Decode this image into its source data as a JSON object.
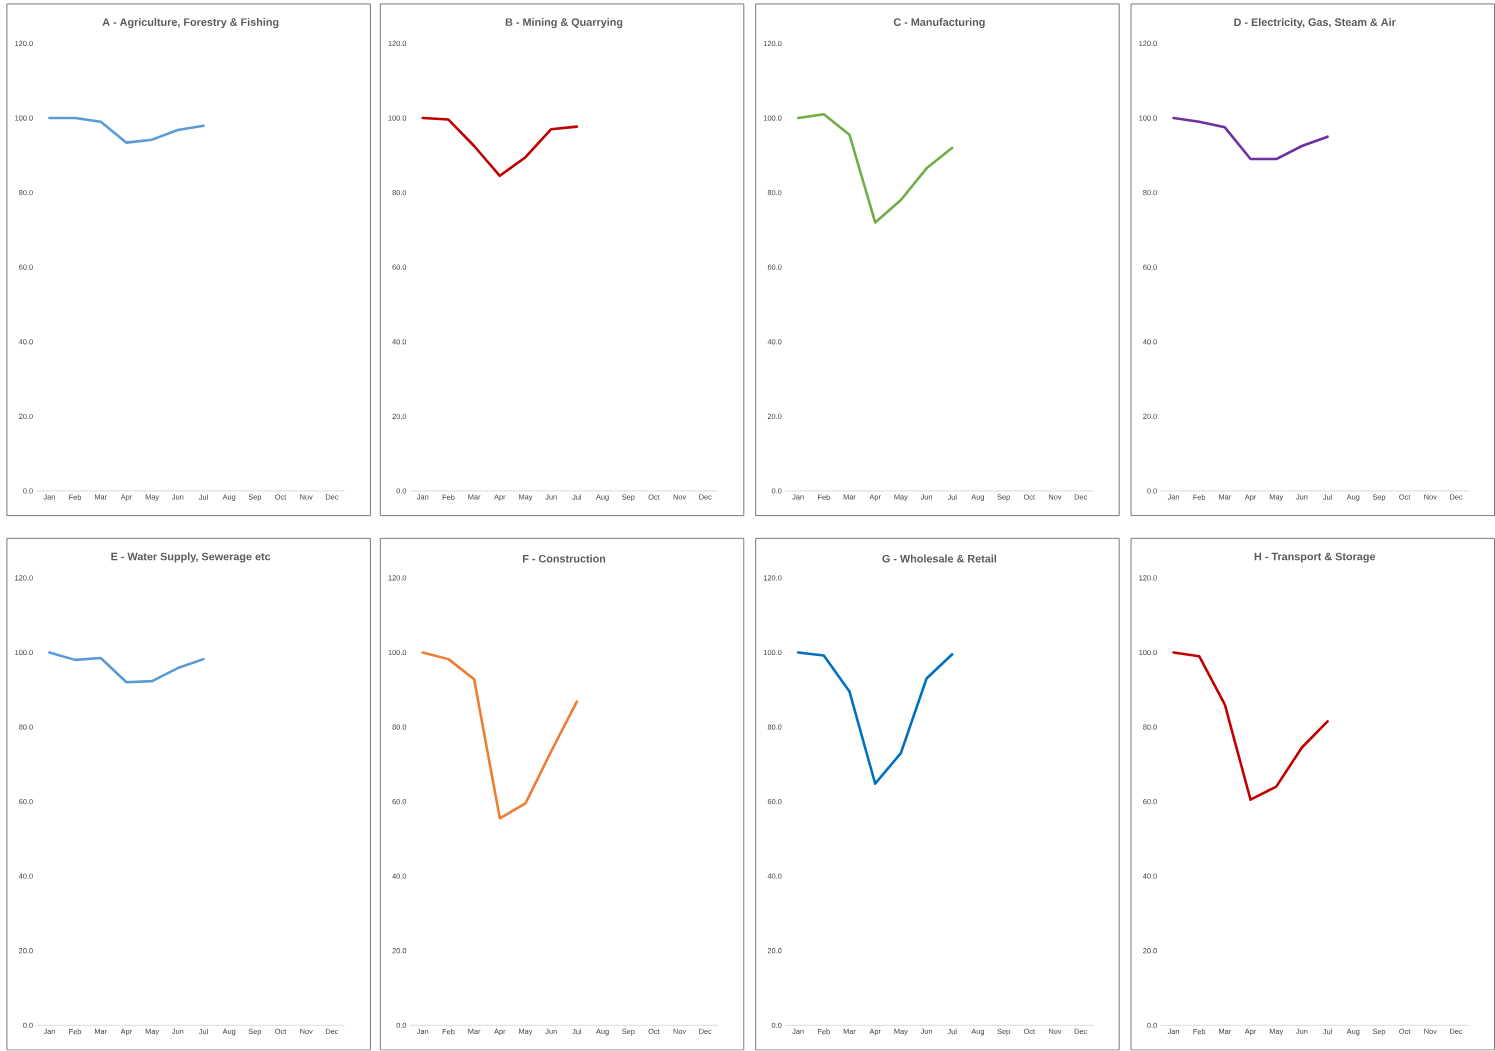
{
  "chart_data": [
    {
      "type": "line",
      "title": "A - Agriculture, Forestry & Fishing",
      "categories": [
        "Jan",
        "Feb",
        "Mar",
        "Apr",
        "May",
        "Jun",
        "Jul",
        "Aug",
        "Sep",
        "Oct",
        "Nov",
        "Dec"
      ],
      "ylim": [
        0,
        120
      ],
      "yticks": [
        {
          "value": 0,
          "label": "0.0"
        },
        {
          "value": 20,
          "label": "20.0"
        },
        {
          "value": 40,
          "label": "40.0"
        },
        {
          "value": 60,
          "label": "60.0"
        },
        {
          "value": 80,
          "label": "80.0"
        },
        {
          "value": 100,
          "label": "100.0"
        },
        {
          "value": 120,
          "label": "120.0"
        }
      ],
      "line_style": "solid",
      "series": [
        {
          "color": "#5b9bd5",
          "values": [
            100,
            100,
            99,
            93.4,
            94.2,
            96.8,
            97.9,
            null,
            null,
            null,
            null,
            null
          ]
        }
      ]
    },
    {
      "type": "line",
      "title": "B - Mining & Quarrying",
      "categories": [
        "Jan",
        "Feb",
        "Mar",
        "Apr",
        "May",
        "Jun",
        "Jul",
        "Aug",
        "Sep",
        "Oct",
        "Nov",
        "Dec"
      ],
      "ylim": [
        0,
        120
      ],
      "yticks": [
        {
          "value": 0,
          "label": "0.0"
        },
        {
          "value": 20,
          "label": "20.0"
        },
        {
          "value": 40,
          "label": "40.0"
        },
        {
          "value": 60,
          "label": "60.0"
        },
        {
          "value": 80,
          "label": "80.0"
        },
        {
          "value": 100,
          "label": "100.0"
        },
        {
          "value": 120,
          "label": "120.0"
        }
      ],
      "line_style": "solid",
      "series": [
        {
          "color": "#c00000",
          "values": [
            100,
            99.6,
            92.5,
            84.5,
            89.5,
            97,
            97.7,
            null,
            null,
            null,
            null,
            null
          ]
        }
      ]
    },
    {
      "type": "line",
      "title": "C - Manufacturing",
      "categories": [
        "Jan",
        "Feb",
        "Mar",
        "Apr",
        "May",
        "Jun",
        "Jul",
        "Aug",
        "Sep",
        "Oct",
        "Nov",
        "Dec"
      ],
      "ylim": [
        0,
        120
      ],
      "yticks": [
        {
          "value": 0,
          "label": "0.0"
        },
        {
          "value": 20,
          "label": "20.0"
        },
        {
          "value": 40,
          "label": "40.0"
        },
        {
          "value": 60,
          "label": "60.0"
        },
        {
          "value": 80,
          "label": "80.0"
        },
        {
          "value": 100,
          "label": "100.0"
        },
        {
          "value": 120,
          "label": "120.0"
        }
      ],
      "line_style": "solid",
      "series": [
        {
          "color": "#70ad47",
          "values": [
            100,
            101,
            95.5,
            72,
            78,
            86.5,
            92,
            null,
            null,
            null,
            null,
            null
          ]
        }
      ]
    },
    {
      "type": "line",
      "title": "D - Electricity, Gas, Steam & Air",
      "categories": [
        "Jan",
        "Feb",
        "Mar",
        "Apr",
        "May",
        "Jun",
        "Jul",
        "Aug",
        "Sep",
        "Oct",
        "Nov",
        "Dec"
      ],
      "ylim": [
        0,
        120
      ],
      "yticks": [
        {
          "value": 0,
          "label": "0.0"
        },
        {
          "value": 20,
          "label": "20.0"
        },
        {
          "value": 40,
          "label": "40.0"
        },
        {
          "value": 60,
          "label": "60.0"
        },
        {
          "value": 80,
          "label": "80.0"
        },
        {
          "value": 100,
          "label": "100.0"
        },
        {
          "value": 120,
          "label": "120.0"
        }
      ],
      "line_style": "solid",
      "series": [
        {
          "color": "#7030a0",
          "values": [
            100,
            99,
            97.5,
            89,
            89,
            92.5,
            95,
            null,
            null,
            null,
            null,
            null
          ]
        }
      ]
    },
    {
      "type": "line",
      "title": "E - Water Supply, Sewerage etc",
      "categories": [
        "Jan",
        "Feb",
        "Mar",
        "Apr",
        "May",
        "Jun",
        "Jul",
        "Aug",
        "Sep",
        "Oct",
        "Nov",
        "Dec"
      ],
      "ylim": [
        0,
        120
      ],
      "yticks": [
        {
          "value": 0,
          "label": "0.0"
        },
        {
          "value": 20,
          "label": "20.0"
        },
        {
          "value": 40,
          "label": "40.0"
        },
        {
          "value": 60,
          "label": "60.0"
        },
        {
          "value": 80,
          "label": "80.0"
        },
        {
          "value": 100,
          "label": "100.0"
        },
        {
          "value": 120,
          "label": "120.0"
        }
      ],
      "line_style": "solid",
      "series": [
        {
          "color": "#5b9bd5",
          "values": [
            100,
            98,
            98.5,
            92,
            92.3,
            95.8,
            98.2,
            null,
            null,
            null,
            null,
            null
          ]
        }
      ]
    },
    {
      "type": "line",
      "title": "F - Construction",
      "categories": [
        "Jan",
        "Feb",
        "Mar",
        "Apr",
        "May",
        "Jun",
        "Jul",
        "Aug",
        "Sep",
        "Oct",
        "Nov",
        "Dec"
      ],
      "ylim": [
        0,
        120
      ],
      "yticks": [
        {
          "value": 0,
          "label": "0.0"
        },
        {
          "value": 20,
          "label": "20.0"
        },
        {
          "value": 40,
          "label": "40.0"
        },
        {
          "value": 60,
          "label": "60.0"
        },
        {
          "value": 80,
          "label": "80.0"
        },
        {
          "value": 100,
          "label": "100.0"
        },
        {
          "value": 120,
          "label": "120.0"
        }
      ],
      "line_style": "solid",
      "series": [
        {
          "color": "#ed7d31",
          "values": [
            100,
            98.2,
            92.8,
            55.5,
            59.5,
            73.5,
            86.8,
            null,
            null,
            null,
            null,
            null
          ]
        }
      ]
    },
    {
      "type": "line",
      "title": "G - Wholesale & Retail",
      "categories": [
        "Jan",
        "Feb",
        "Mar",
        "Apr",
        "May",
        "Jun",
        "Jul",
        "Aug",
        "Sep",
        "Oct",
        "Nov",
        "Dec"
      ],
      "ylim": [
        0,
        120
      ],
      "yticks": [
        {
          "value": 0,
          "label": "0.0"
        },
        {
          "value": 20,
          "label": "20.0"
        },
        {
          "value": 40,
          "label": "40.0"
        },
        {
          "value": 60,
          "label": "60.0"
        },
        {
          "value": 80,
          "label": "80.0"
        },
        {
          "value": 100,
          "label": "100.0"
        },
        {
          "value": 120,
          "label": "120.0"
        }
      ],
      "line_style": "solid",
      "series": [
        {
          "color": "#0070c0",
          "values": [
            100,
            99.2,
            89.5,
            64.8,
            73,
            93,
            99.5,
            null,
            null,
            null,
            null,
            null
          ]
        }
      ]
    },
    {
      "type": "line",
      "title": "H - Transport & Storage",
      "categories": [
        "Jan",
        "Feb",
        "Mar",
        "Apr",
        "May",
        "Jun",
        "Jul",
        "Aug",
        "Sep",
        "Oct",
        "Nov",
        "Dec"
      ],
      "ylim": [
        0,
        120
      ],
      "yticks": [
        {
          "value": 0,
          "label": "0.0"
        },
        {
          "value": 20,
          "label": "20.0"
        },
        {
          "value": 40,
          "label": "40.0"
        },
        {
          "value": 60,
          "label": "60.0"
        },
        {
          "value": 80,
          "label": "80.0"
        },
        {
          "value": 100,
          "label": "100.0"
        },
        {
          "value": 120,
          "label": "120.0"
        }
      ],
      "line_style": "solid",
      "series": [
        {
          "color": "#c00000",
          "values": [
            100,
            99,
            86,
            60.5,
            64,
            74.5,
            81.5,
            null,
            null,
            null,
            null,
            null
          ]
        }
      ]
    }
  ]
}
